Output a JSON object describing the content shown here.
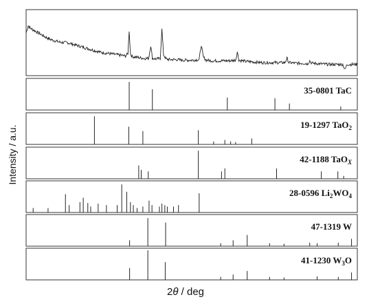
{
  "chart_data": {
    "type": "line",
    "title": "",
    "ylabel": "Intensity / a.u.",
    "xlabel_theta": "θ",
    "xlabel_prefix": "2",
    "xlabel_suffix": " / deg",
    "xlim": [
      10,
      90
    ],
    "grid": false,
    "legend": "none",
    "xrd_pattern": {
      "points": [
        [
          10.0,
          0.66
        ],
        [
          10.5,
          0.78
        ],
        [
          11.0,
          0.74
        ],
        [
          12.0,
          0.7
        ],
        [
          13.0,
          0.66
        ],
        [
          14.0,
          0.62
        ],
        [
          15.0,
          0.58
        ],
        [
          16.0,
          0.55
        ],
        [
          17.0,
          0.53
        ],
        [
          18.0,
          0.51
        ],
        [
          19.0,
          0.5
        ],
        [
          20.0,
          0.5
        ],
        [
          21.0,
          0.48
        ],
        [
          22.0,
          0.46
        ],
        [
          23.0,
          0.44
        ],
        [
          24.0,
          0.42
        ],
        [
          25.0,
          0.4
        ],
        [
          26.0,
          0.38
        ],
        [
          27.0,
          0.36
        ],
        [
          28.0,
          0.34
        ],
        [
          29.0,
          0.33
        ],
        [
          30.0,
          0.32
        ],
        [
          31.0,
          0.31
        ],
        [
          32.0,
          0.3
        ],
        [
          33.0,
          0.29
        ],
        [
          34.0,
          0.28
        ],
        [
          34.6,
          0.32
        ],
        [
          34.9,
          0.7
        ],
        [
          35.2,
          0.32
        ],
        [
          35.6,
          0.27
        ],
        [
          36.5,
          0.26
        ],
        [
          37.5,
          0.25
        ],
        [
          38.5,
          0.24
        ],
        [
          39.6,
          0.24
        ],
        [
          40.1,
          0.45
        ],
        [
          40.5,
          0.24
        ],
        [
          41.5,
          0.23
        ],
        [
          42.4,
          0.24
        ],
        [
          42.8,
          0.72
        ],
        [
          43.2,
          0.3
        ],
        [
          43.8,
          0.23
        ],
        [
          44.5,
          0.22
        ],
        [
          46.0,
          0.22
        ],
        [
          48.0,
          0.21
        ],
        [
          50.0,
          0.21
        ],
        [
          51.8,
          0.22
        ],
        [
          52.3,
          0.46
        ],
        [
          52.8,
          0.26
        ],
        [
          53.5,
          0.21
        ],
        [
          55.0,
          0.2
        ],
        [
          57.0,
          0.2
        ],
        [
          59.0,
          0.2
        ],
        [
          60.6,
          0.21
        ],
        [
          61.0,
          0.35
        ],
        [
          61.4,
          0.21
        ],
        [
          63.0,
          0.19
        ],
        [
          65.0,
          0.18
        ],
        [
          67.0,
          0.17
        ],
        [
          69.0,
          0.17
        ],
        [
          71.0,
          0.17
        ],
        [
          72.5,
          0.17
        ],
        [
          73.0,
          0.24
        ],
        [
          73.5,
          0.17
        ],
        [
          75.0,
          0.16
        ],
        [
          77.0,
          0.16
        ],
        [
          78.0,
          0.15
        ],
        [
          78.5,
          0.2
        ],
        [
          79.0,
          0.16
        ],
        [
          81.0,
          0.15
        ],
        [
          83.0,
          0.14
        ],
        [
          85.0,
          0.14
        ],
        [
          86.5,
          0.14
        ],
        [
          87.0,
          0.05
        ],
        [
          87.5,
          0.14
        ],
        [
          88.0,
          0.14
        ],
        [
          90.0,
          0.14
        ]
      ]
    },
    "reference_patterns": [
      {
        "name_code": "35-0801",
        "name_formula": "TaC",
        "name_sub": "",
        "name_after": "",
        "name_italic_sub": "",
        "peaks": [
          [
            34.9,
            0.95
          ],
          [
            40.5,
            0.7
          ],
          [
            58.6,
            0.42
          ],
          [
            70.1,
            0.4
          ],
          [
            73.6,
            0.22
          ],
          [
            86.0,
            0.12
          ]
        ]
      },
      {
        "name_code": "19-1297",
        "name_formula": "TaO",
        "name_sub": "2",
        "name_after": "",
        "name_italic_sub": "",
        "peaks": [
          [
            26.5,
            0.95
          ],
          [
            34.8,
            0.6
          ],
          [
            38.2,
            0.45
          ],
          [
            51.6,
            0.48
          ],
          [
            55.3,
            0.1
          ],
          [
            58.0,
            0.15
          ],
          [
            59.4,
            0.1
          ],
          [
            60.6,
            0.08
          ],
          [
            64.5,
            0.2
          ]
        ]
      },
      {
        "name_code": "42-1188",
        "name_formula": "TaO",
        "name_sub": "",
        "name_after": "",
        "name_italic_sub": "X",
        "peaks": [
          [
            37.2,
            0.45
          ],
          [
            37.8,
            0.3
          ],
          [
            39.5,
            0.25
          ],
          [
            51.6,
            0.95
          ],
          [
            57.2,
            0.25
          ],
          [
            58.0,
            0.35
          ],
          [
            70.5,
            0.35
          ],
          [
            81.3,
            0.25
          ],
          [
            85.3,
            0.25
          ],
          [
            86.7,
            0.1
          ]
        ]
      },
      {
        "name_code": "28-0596",
        "name_formula": "Li",
        "name_sub": "2",
        "name_after": "WO",
        "name_sub2": "4",
        "name_italic_sub": "",
        "peaks": [
          [
            11.7,
            0.15
          ],
          [
            15.3,
            0.15
          ],
          [
            19.5,
            0.62
          ],
          [
            20.4,
            0.25
          ],
          [
            23.0,
            0.35
          ],
          [
            23.8,
            0.5
          ],
          [
            24.9,
            0.32
          ],
          [
            25.6,
            0.2
          ],
          [
            27.4,
            0.3
          ],
          [
            29.4,
            0.25
          ],
          [
            32.0,
            0.25
          ],
          [
            33.1,
            0.95
          ],
          [
            34.3,
            0.7
          ],
          [
            35.2,
            0.35
          ],
          [
            35.9,
            0.25
          ],
          [
            36.8,
            0.15
          ],
          [
            38.2,
            0.2
          ],
          [
            39.7,
            0.4
          ],
          [
            40.4,
            0.25
          ],
          [
            42.2,
            0.2
          ],
          [
            42.8,
            0.3
          ],
          [
            43.5,
            0.25
          ],
          [
            44.1,
            0.2
          ],
          [
            45.6,
            0.2
          ],
          [
            46.8,
            0.25
          ],
          [
            51.8,
            0.65
          ]
        ]
      },
      {
        "name_code": "47-1319",
        "name_formula": "W",
        "name_sub": "",
        "name_after": "",
        "name_italic_sub": "",
        "peaks": [
          [
            35.0,
            0.2
          ],
          [
            39.4,
            0.95
          ],
          [
            43.7,
            0.8
          ],
          [
            57.0,
            0.1
          ],
          [
            60.0,
            0.2
          ],
          [
            63.4,
            0.38
          ],
          [
            68.8,
            0.1
          ],
          [
            72.3,
            0.08
          ],
          [
            78.5,
            0.12
          ],
          [
            80.3,
            0.1
          ],
          [
            85.4,
            0.12
          ],
          [
            88.6,
            0.25
          ]
        ]
      },
      {
        "name_code": "41-1230",
        "name_formula": "W",
        "name_sub": "3",
        "name_after": "O",
        "name_italic_sub": "",
        "peaks": [
          [
            35.0,
            0.4
          ],
          [
            39.4,
            1.0
          ],
          [
            43.6,
            0.6
          ],
          [
            57.0,
            0.1
          ],
          [
            60.0,
            0.18
          ],
          [
            63.4,
            0.3
          ],
          [
            68.8,
            0.1
          ],
          [
            72.3,
            0.08
          ],
          [
            80.3,
            0.12
          ],
          [
            85.4,
            0.1
          ],
          [
            88.6,
            0.25
          ]
        ]
      }
    ]
  }
}
